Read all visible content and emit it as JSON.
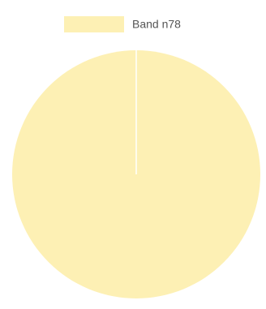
{
  "chart_data": {
    "type": "pie",
    "categories": [
      "Band n78"
    ],
    "values": [
      100
    ],
    "colors": [
      "#fdf0b4"
    ],
    "legend": "top"
  }
}
